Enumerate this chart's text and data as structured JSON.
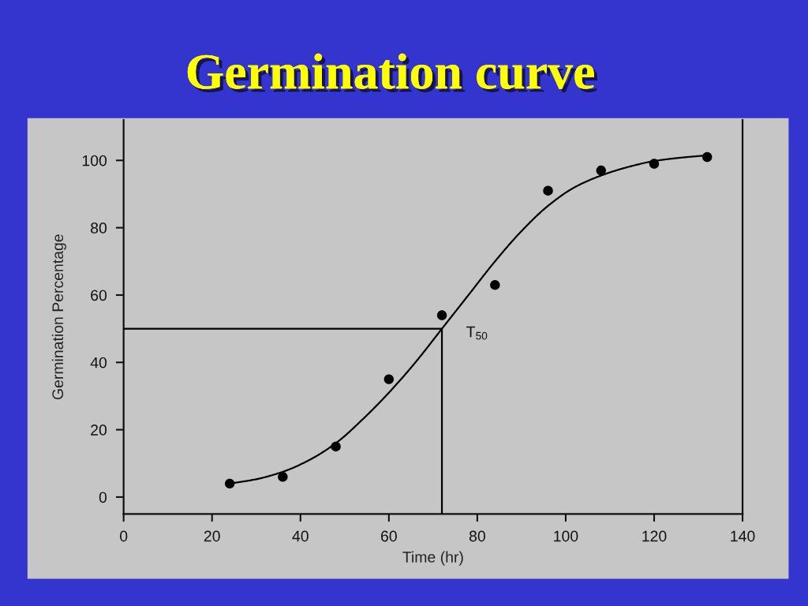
{
  "chart_data": {
    "type": "scatter",
    "title": "Germination curve",
    "xlabel": "Time (hr)",
    "ylabel": "Germination Percentage",
    "xlim": [
      0,
      140
    ],
    "ylim": [
      -5,
      112
    ],
    "xticks": [
      0,
      20,
      40,
      60,
      80,
      100,
      120,
      140
    ],
    "yticks": [
      0,
      20,
      40,
      60,
      80,
      100
    ],
    "series": [
      {
        "color": "#000000",
        "marker": "circle",
        "x": [
          24,
          36,
          48,
          60,
          72,
          84,
          96,
          108,
          120,
          132
        ],
        "values": [
          4,
          6,
          15,
          35,
          54,
          63,
          91,
          97,
          99,
          101
        ]
      },
      {
        "type": "line",
        "color": "#000000",
        "marker": "none",
        "line_style": "solid",
        "x": [
          24,
          30,
          36,
          42,
          48,
          54,
          60,
          66,
          72,
          78,
          84,
          90,
          96,
          102,
          108,
          114,
          120,
          126,
          132
        ],
        "values": [
          4,
          5.3,
          7.5,
          11,
          16,
          23,
          31,
          40,
          50,
          60,
          70,
          79,
          86.5,
          92,
          95.5,
          98,
          99.8,
          100.8,
          101.5
        ]
      },
      {
        "type": "line",
        "color": "#000000",
        "marker": "none",
        "line_style": "solid",
        "x": [
          0,
          72,
          72
        ],
        "values": [
          50,
          50,
          -5
        ]
      }
    ],
    "annotations": [
      {
        "text": "T$_{50}$",
        "x": 72,
        "y": 50
      }
    ]
  }
}
